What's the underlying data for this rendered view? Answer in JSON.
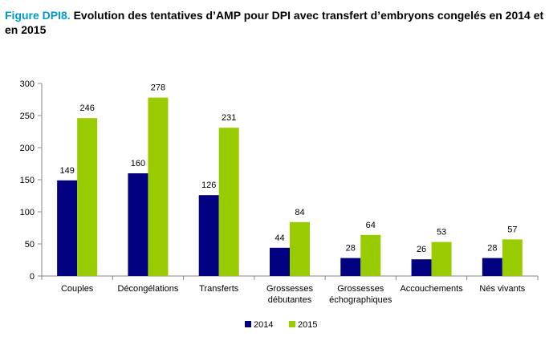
{
  "figure": {
    "label": "Figure DPI8.",
    "title": "Evolution des tentatives d’AMP pour DPI avec transfert d’embryons congelés en 2014 et en 2015"
  },
  "colors": {
    "series_2014": "#000080",
    "series_2015": "#99cc00",
    "axis": "#868686"
  },
  "chart_data": {
    "type": "bar",
    "title": "Evolution des tentatives d’AMP pour DPI avec transfert d’embryons congelés en 2014 et en 2015",
    "xlabel": "",
    "ylabel": "",
    "ylim": [
      0,
      300
    ],
    "yticks": [
      0,
      50,
      100,
      150,
      200,
      250,
      300
    ],
    "grid": false,
    "legend_position": "bottom",
    "categories": [
      [
        "Couples"
      ],
      [
        "Décongélations"
      ],
      [
        "Transferts"
      ],
      [
        "Grossesses",
        "débutantes"
      ],
      [
        "Grossesses",
        "échographiques"
      ],
      [
        "Accouchements"
      ],
      [
        "Nés vivants"
      ]
    ],
    "series": [
      {
        "name": "2014",
        "values": [
          149,
          160,
          126,
          44,
          28,
          26,
          28
        ]
      },
      {
        "name": "2015",
        "values": [
          246,
          278,
          231,
          84,
          64,
          53,
          57
        ]
      }
    ]
  }
}
